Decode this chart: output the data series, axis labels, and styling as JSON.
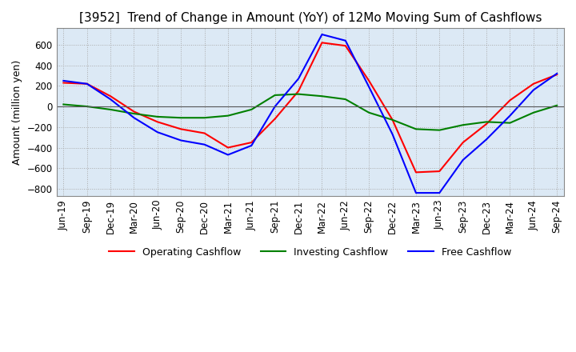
{
  "title": "[3952]  Trend of Change in Amount (YoY) of 12Mo Moving Sum of Cashflows",
  "ylabel": "Amount (million yen)",
  "xlabels": [
    "Jun-19",
    "Sep-19",
    "Dec-19",
    "Mar-20",
    "Jun-20",
    "Sep-20",
    "Dec-20",
    "Mar-21",
    "Jun-21",
    "Sep-21",
    "Dec-21",
    "Mar-22",
    "Jun-22",
    "Sep-22",
    "Dec-22",
    "Mar-23",
    "Jun-23",
    "Sep-23",
    "Dec-23",
    "Mar-24",
    "Jun-24",
    "Sep-24"
  ],
  "operating": [
    230,
    220,
    100,
    -50,
    -150,
    -220,
    -260,
    -400,
    -350,
    -120,
    150,
    620,
    590,
    250,
    -130,
    -640,
    -630,
    -350,
    -170,
    60,
    220,
    310
  ],
  "investing": [
    20,
    0,
    -30,
    -70,
    -100,
    -110,
    -110,
    -90,
    -30,
    110,
    120,
    100,
    70,
    -60,
    -130,
    -220,
    -230,
    -180,
    -150,
    -160,
    -60,
    10
  ],
  "free": [
    250,
    220,
    70,
    -110,
    -250,
    -330,
    -370,
    -470,
    -380,
    0,
    270,
    700,
    640,
    190,
    -270,
    -840,
    -840,
    -520,
    -320,
    -90,
    160,
    320
  ],
  "ylim": [
    -870,
    760
  ],
  "yticks": [
    -800,
    -600,
    -400,
    -200,
    0,
    200,
    400,
    600
  ],
  "operating_color": "#ff0000",
  "investing_color": "#008000",
  "free_color": "#0000ff",
  "plot_bg_color": "#dce9f5",
  "background_color": "#ffffff",
  "grid_color": "#aaaaaa",
  "title_fontsize": 11,
  "label_fontsize": 9,
  "tick_fontsize": 8.5
}
